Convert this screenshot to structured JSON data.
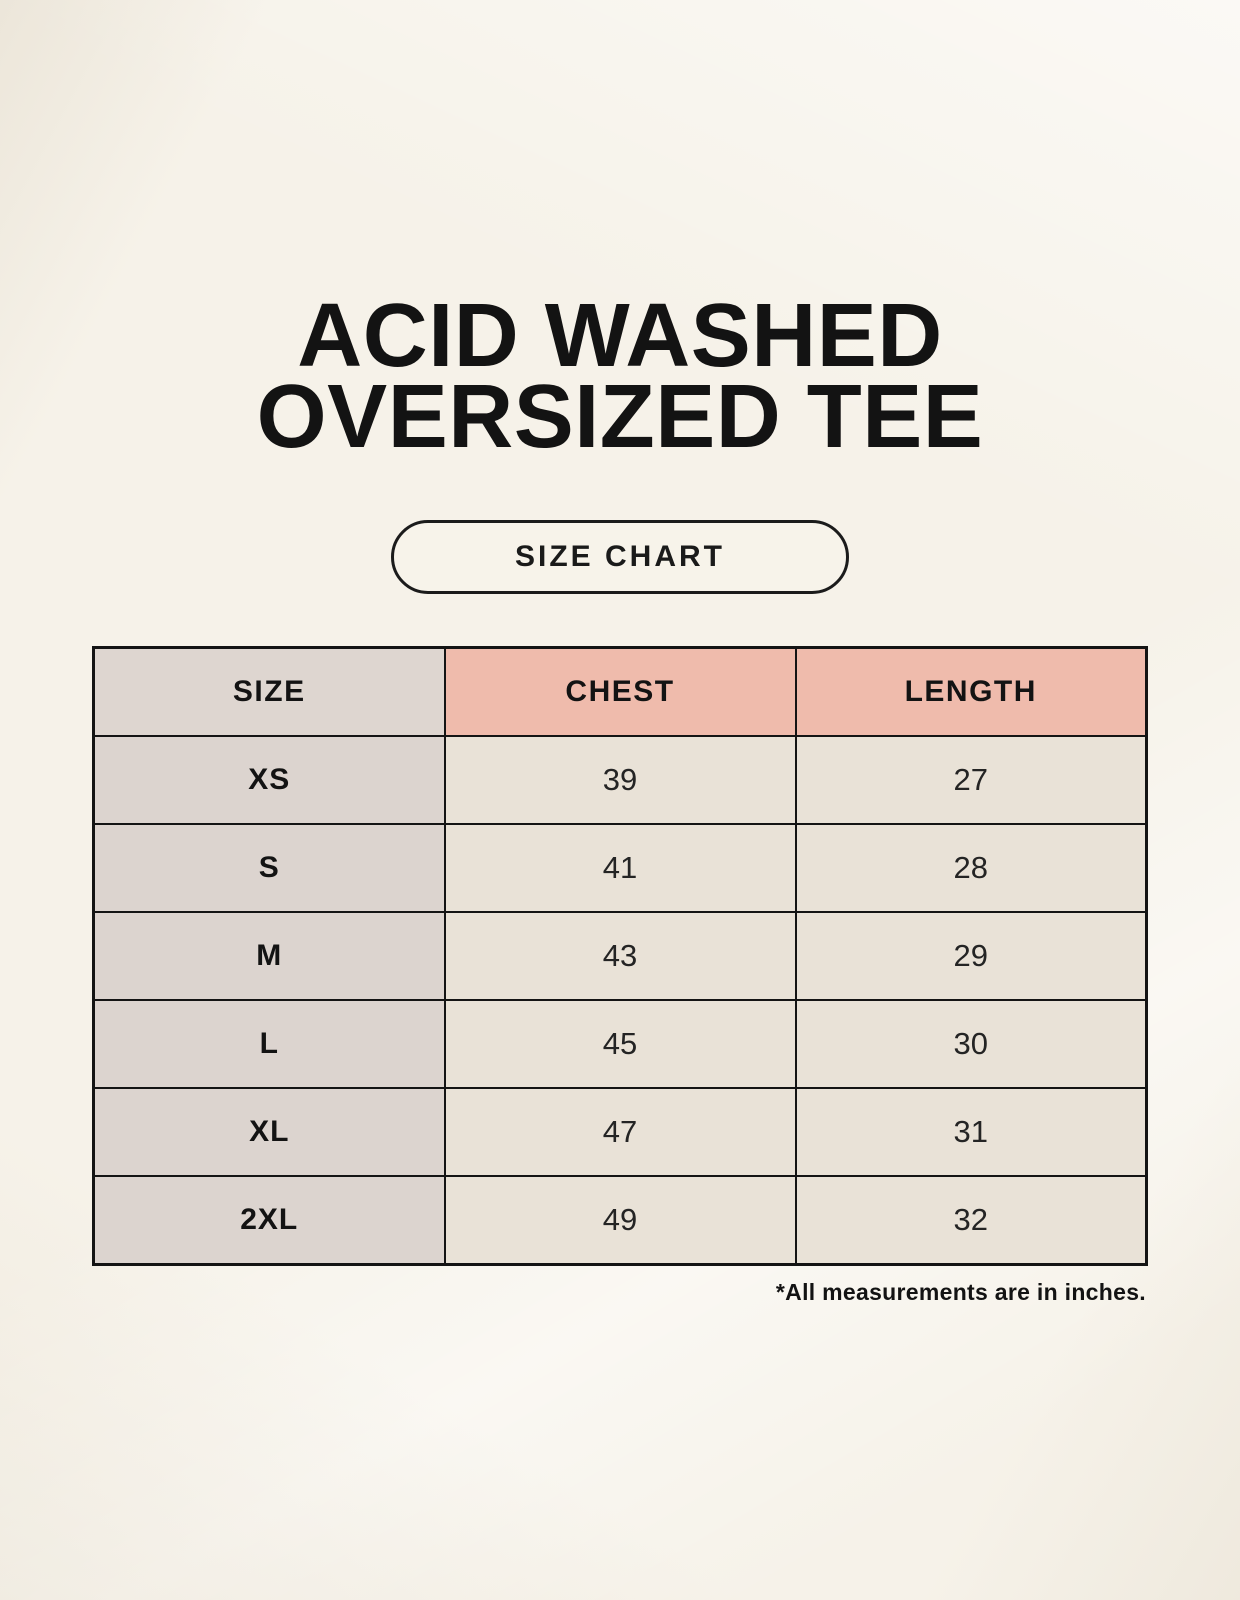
{
  "title": {
    "line1": "ACID WASHED",
    "line2": "OVERSIZED TEE"
  },
  "badge": {
    "label": "SIZE CHART"
  },
  "table": {
    "columns": [
      "SIZE",
      "CHEST",
      "LENGTH"
    ],
    "rows": [
      {
        "size": "XS",
        "chest": "39",
        "length": "27"
      },
      {
        "size": "S",
        "chest": "41",
        "length": "28"
      },
      {
        "size": "M",
        "chest": "43",
        "length": "29"
      },
      {
        "size": "L",
        "chest": "45",
        "length": "30"
      },
      {
        "size": "XL",
        "chest": "47",
        "length": "31"
      },
      {
        "size": "2XL",
        "chest": "49",
        "length": "32"
      }
    ]
  },
  "footnote": "*All measurements are in inches.",
  "colors": {
    "background": "#f6f2e9",
    "header_size_bg": "#ded6d0",
    "header_measure_bg": "#efbbac",
    "row_label_bg": "#dcd4cf",
    "row_value_bg": "#e9e2d7",
    "table_border": "#141414",
    "text": "#1a1a1a"
  },
  "chart_data": {
    "type": "table",
    "title": "ACID WASHED OVERSIZED TEE — SIZE CHART",
    "columns": [
      "SIZE",
      "CHEST",
      "LENGTH"
    ],
    "rows": [
      [
        "XS",
        39,
        27
      ],
      [
        "S",
        41,
        28
      ],
      [
        "M",
        43,
        29
      ],
      [
        "L",
        45,
        30
      ],
      [
        "XL",
        47,
        31
      ],
      [
        "2XL",
        49,
        32
      ]
    ],
    "units": "inches"
  }
}
